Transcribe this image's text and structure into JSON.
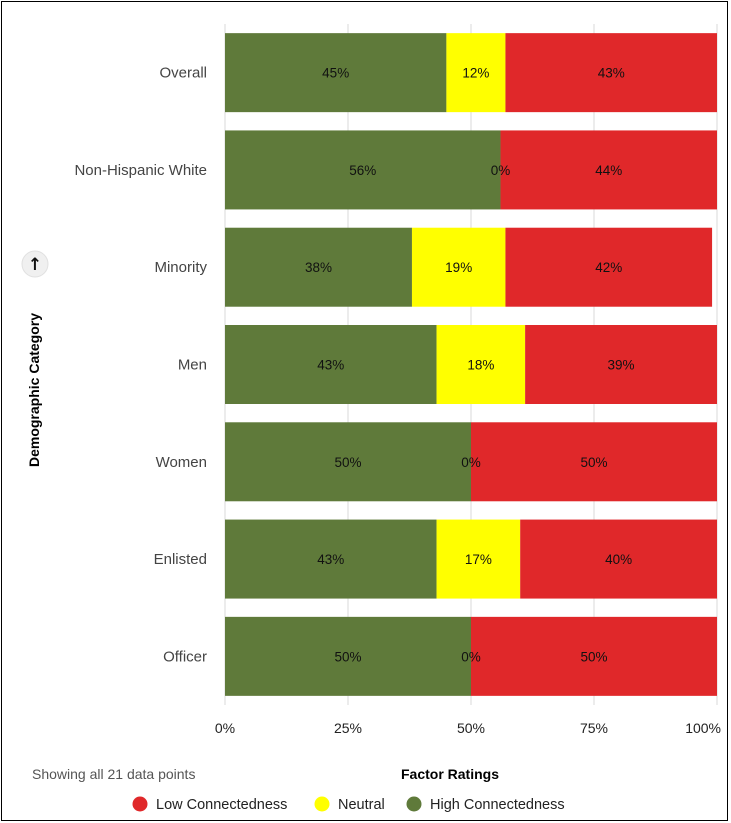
{
  "chart_data": {
    "type": "bar",
    "orientation": "horizontal",
    "stacked": true,
    "categories": [
      "Overall",
      "Non-Hispanic White",
      "Minority",
      "Men",
      "Women",
      "Enlisted",
      "Officer"
    ],
    "series": [
      {
        "name": "High Connectedness",
        "color": "#5f7a3a",
        "values": [
          45,
          56,
          38,
          43,
          50,
          43,
          50
        ]
      },
      {
        "name": "Neutral",
        "color": "#ffff00",
        "values": [
          12,
          0,
          19,
          18,
          0,
          17,
          0
        ]
      },
      {
        "name": "Low Connectedness",
        "color": "#e0282a",
        "values": [
          43,
          44,
          42,
          39,
          50,
          40,
          50
        ]
      }
    ],
    "data_labels": [
      [
        "45%",
        "12%",
        "43%"
      ],
      [
        "56%",
        "0%",
        "44%"
      ],
      [
        "38%",
        "19%",
        "42%"
      ],
      [
        "43%",
        "18%",
        "39%"
      ],
      [
        "50%",
        "0%",
        "50%"
      ],
      [
        "43%",
        "17%",
        "40%"
      ],
      [
        "50%",
        "0%",
        "50%"
      ]
    ],
    "xlabel": "Factor Ratings",
    "ylabel": "Demographic Category",
    "xlim": [
      0,
      100
    ],
    "x_ticks": [
      "0%",
      "25%",
      "50%",
      "75%",
      "100%"
    ],
    "grid": true,
    "legend": {
      "placement": "bottom",
      "items": [
        {
          "label": "Low Connectedness",
          "color": "#e0282a"
        },
        {
          "label": "Neutral",
          "color": "#ffff00"
        },
        {
          "label": "High Connectedness",
          "color": "#5f7a3a"
        }
      ]
    }
  },
  "footnote": "Showing all 21 data points",
  "sort_icon": "arrow-up-icon",
  "sort_glyph": "↑"
}
